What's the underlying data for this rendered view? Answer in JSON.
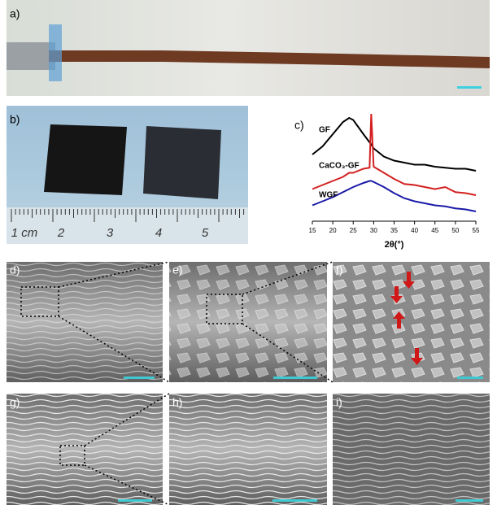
{
  "panels": [
    "a)",
    "b)",
    "c)",
    "d)",
    "e)",
    "f)",
    "g)",
    "h)",
    "i)"
  ],
  "ruler": {
    "labels": [
      "1 cm",
      "2",
      "3",
      "4",
      "5"
    ]
  },
  "chart_data": {
    "type": "line",
    "xlabel": "2θ(°)",
    "x": [
      15,
      17.5,
      20,
      22.5,
      24,
      25,
      27.5,
      29,
      29.4,
      30,
      32.5,
      35,
      37.5,
      40,
      42.5,
      45,
      47.5,
      50,
      52.5,
      55
    ],
    "xlim": [
      15,
      55
    ],
    "xticks": [
      15,
      20,
      25,
      30,
      35,
      40,
      45,
      50,
      55
    ],
    "ylim": [
      0,
      100
    ],
    "series": [
      {
        "name": "GF",
        "color": "#000000",
        "values": [
          60,
          68,
          80,
          92,
          96,
          94,
          80,
          72,
          70,
          66,
          58,
          54,
          52,
          50,
          50,
          48,
          47,
          46,
          46,
          44
        ]
      },
      {
        "name": "CaCO₃-GF",
        "color": "#d42020",
        "values": [
          26,
          30,
          34,
          38,
          42,
          42,
          46,
          47,
          100,
          48,
          42,
          36,
          31,
          30,
          28,
          26,
          28,
          23,
          22,
          20
        ]
      },
      {
        "name": "WGF",
        "color": "#1a1aa8",
        "values": [
          10,
          14,
          18,
          23,
          26,
          28,
          32,
          34,
          34,
          33,
          28,
          22,
          17,
          14,
          12,
          10,
          9,
          7,
          6,
          4
        ]
      }
    ]
  }
}
